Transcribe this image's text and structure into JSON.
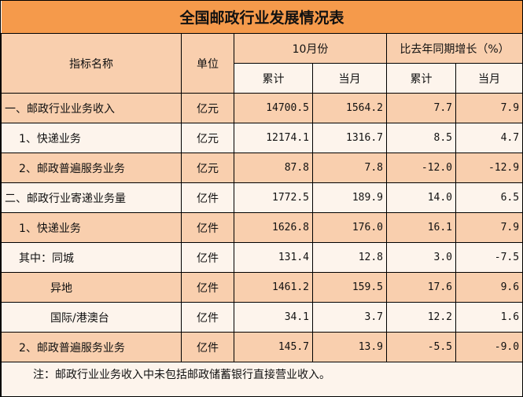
{
  "title": "全国邮政行业发展情况表",
  "headers": {
    "name": "指标名称",
    "unit": "单位",
    "period": "10月份",
    "growth": "比去年同期增长（%）",
    "cum": "累计",
    "month": "当月"
  },
  "rows": [
    {
      "name": "一、邮政行业业务收入",
      "unit": "亿元",
      "cum": "14700.5",
      "month": "1564.2",
      "g_cum": "7.7",
      "g_month": "7.9",
      "indent": 0
    },
    {
      "name": "1、快递业务",
      "unit": "亿元",
      "cum": "12174.1",
      "month": "1316.7",
      "g_cum": "8.5",
      "g_month": "4.7",
      "indent": 1
    },
    {
      "name": "2、邮政普遍服务业务",
      "unit": "亿元",
      "cum": "87.8",
      "month": "7.8",
      "g_cum": "-12.0",
      "g_month": "-12.9",
      "indent": 1
    },
    {
      "name": "二、邮政行业寄递业务量",
      "unit": "亿件",
      "cum": "1772.5",
      "month": "189.9",
      "g_cum": "14.0",
      "g_month": "6.5",
      "indent": 0
    },
    {
      "name": "1、快递业务",
      "unit": "亿件",
      "cum": "1626.8",
      "month": "176.0",
      "g_cum": "16.1",
      "g_month": "7.9",
      "indent": 1
    },
    {
      "name": "其中：同城",
      "unit": "亿件",
      "cum": "131.4",
      "month": "12.8",
      "g_cum": "3.0",
      "g_month": "-7.5",
      "indent": 1
    },
    {
      "name": "异地",
      "unit": "亿件",
      "cum": "1461.2",
      "month": "159.5",
      "g_cum": "17.6",
      "g_month": "9.6",
      "indent": 2
    },
    {
      "name": "国际/港澳台",
      "unit": "亿件",
      "cum": "34.1",
      "month": "3.7",
      "g_cum": "12.2",
      "g_month": "1.6",
      "indent": 2
    },
    {
      "name": "2、邮政普遍服务业务",
      "unit": "亿件",
      "cum": "145.7",
      "month": "13.9",
      "g_cum": "-5.5",
      "g_month": "-9.0",
      "indent": 1
    }
  ],
  "note": "注：邮政行业业务收入中未包括邮政储蓄银行直接营业收入。",
  "colors": {
    "title_bg": "#F59A4B",
    "peach": "#F9CFAE",
    "light": "#FDF4EC"
  }
}
